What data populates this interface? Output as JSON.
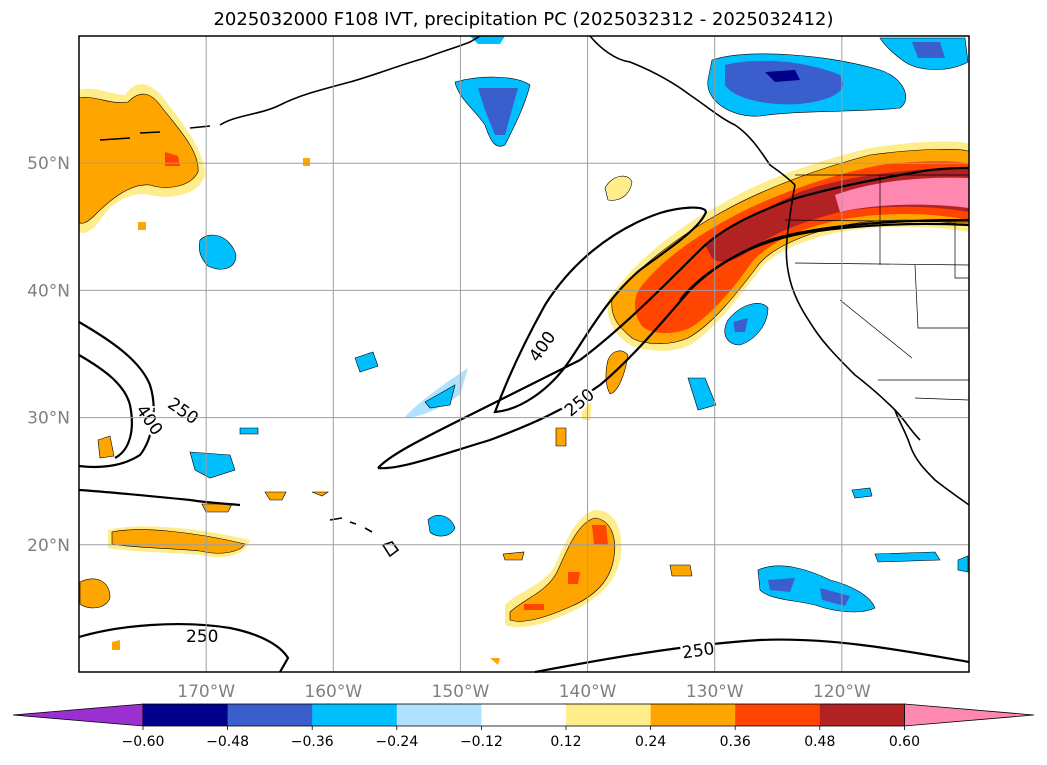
{
  "title": "2025032000 F108 IVT, precipitation PC (2025032312 - 2025032412)",
  "map": {
    "lat_labels": [
      {
        "text": "50°N",
        "lat": 50
      },
      {
        "text": "40°N",
        "lat": 40
      },
      {
        "text": "30°N",
        "lat": 30
      },
      {
        "text": "20°N",
        "lat": 20
      }
    ],
    "lon_labels": [
      {
        "text": "170°W",
        "lon": -170
      },
      {
        "text": "160°W",
        "lon": -160
      },
      {
        "text": "150°W",
        "lon": -150
      },
      {
        "text": "140°W",
        "lon": -140
      },
      {
        "text": "130°W",
        "lon": -130
      },
      {
        "text": "120°W",
        "lon": -120
      }
    ],
    "extent": {
      "lon_min": -180,
      "lon_max": -110,
      "lat_min": 10,
      "lat_max": 60
    },
    "grid": true,
    "contour_labels": [
      "250",
      "400",
      "250",
      "400",
      "250",
      "250"
    ]
  },
  "colorbar": {
    "ticks": [
      "−0.60",
      "−0.48",
      "−0.36",
      "−0.24",
      "−0.12",
      "0.12",
      "0.24",
      "0.36",
      "0.48",
      "0.60"
    ],
    "colors": [
      "#9b30d0",
      "#00008b",
      "#3a5fcd",
      "#00bfff",
      "#b0e2ff",
      "#ffffff",
      "#ffec8b",
      "#ffa500",
      "#ff4500",
      "#b22222",
      "#ff88b0"
    ]
  }
}
